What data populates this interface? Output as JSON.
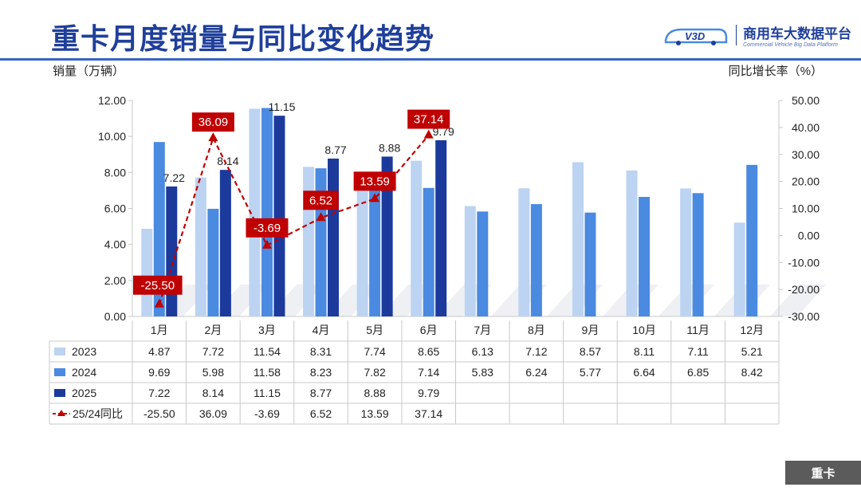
{
  "header": {
    "title": "重卡月度销量与同比变化趋势"
  },
  "brand": {
    "logo_text": "V3D",
    "name": "商用车大数据平台",
    "subtitle": "Commercial Vehicle Big Data Platform"
  },
  "footer": {
    "badge": "重卡"
  },
  "colors": {
    "s2023": "#bcd3f2",
    "s2024": "#4a8ae0",
    "s2025": "#1b3a9c",
    "yoy": "#c00000",
    "title": "#1f3f9a"
  },
  "chart_data": {
    "type": "bar",
    "categories": [
      "1月",
      "2月",
      "3月",
      "4月",
      "5月",
      "6月",
      "7月",
      "8月",
      "9月",
      "10月",
      "11月",
      "12月"
    ],
    "series": [
      {
        "name": "2023",
        "values": [
          4.87,
          7.72,
          11.54,
          8.31,
          7.74,
          8.65,
          6.13,
          7.12,
          8.57,
          8.11,
          7.11,
          5.21
        ]
      },
      {
        "name": "2024",
        "values": [
          9.69,
          5.98,
          11.58,
          8.23,
          7.82,
          7.14,
          5.83,
          6.24,
          5.77,
          6.64,
          6.85,
          8.42
        ]
      },
      {
        "name": "2025",
        "values": [
          7.22,
          8.14,
          11.15,
          8.77,
          8.88,
          9.79,
          null,
          null,
          null,
          null,
          null,
          null
        ]
      }
    ],
    "line_series": {
      "name": "25/24同比",
      "type": "line",
      "axis": "right",
      "values": [
        -25.5,
        36.09,
        -3.69,
        6.52,
        13.59,
        37.14,
        null,
        null,
        null,
        null,
        null,
        null
      ]
    },
    "ylabel": "销量（万辆）",
    "y2label": "同比增长率（%）",
    "ylim": [
      0,
      12
    ],
    "y2lim": [
      -30,
      50
    ],
    "yticks": [
      "0.00",
      "2.00",
      "4.00",
      "6.00",
      "8.00",
      "10.00",
      "12.00"
    ],
    "y2ticks": [
      "-30.00",
      "-20.00",
      "-10.00",
      "0.00",
      "10.00",
      "20.00",
      "30.00",
      "40.00",
      "50.00"
    ],
    "grid": false,
    "legend": "table-bottom"
  }
}
